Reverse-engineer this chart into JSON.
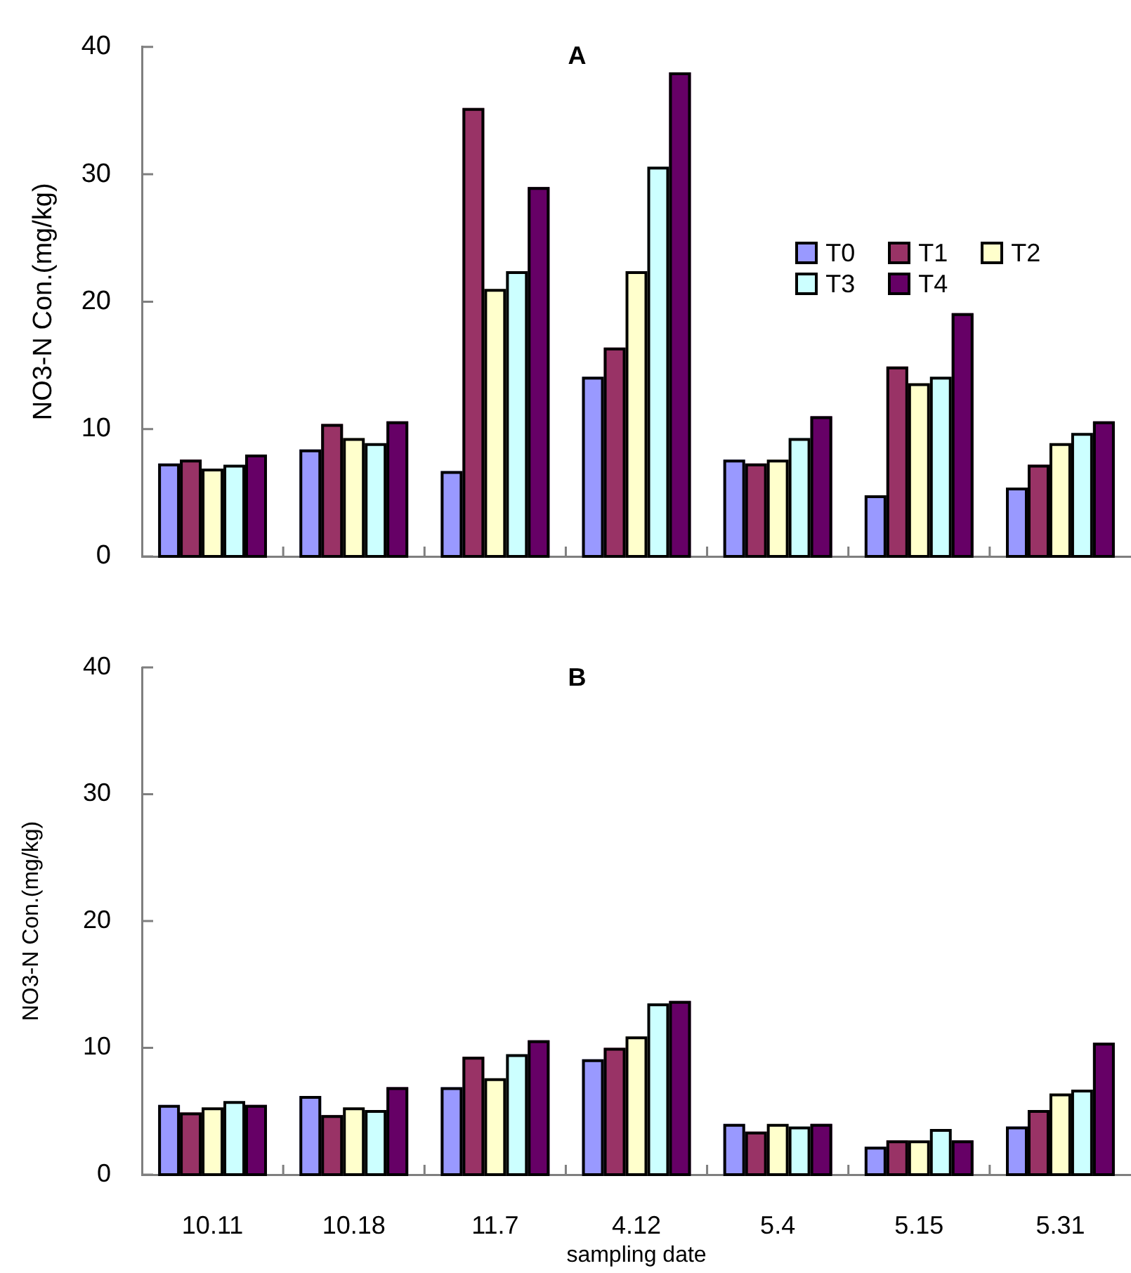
{
  "chart_data": [
    {
      "type": "bar",
      "title": "A",
      "ylabel": "NO3-N Con.(mg/kg)",
      "categories": [
        "10.11",
        "10.18",
        "11.7",
        "4.12",
        "5.4",
        "5.15",
        "5.31"
      ],
      "series": [
        {
          "name": "T0",
          "color": "#9999ff",
          "values": [
            7.3,
            8.4,
            6.7,
            14.1,
            7.6,
            4.8,
            5.4
          ]
        },
        {
          "name": "T1",
          "color": "#993366",
          "values": [
            7.6,
            10.4,
            35.2,
            16.4,
            7.3,
            14.9,
            7.2
          ]
        },
        {
          "name": "T2",
          "color": "#ffffcc",
          "values": [
            6.9,
            9.3,
            21.0,
            22.4,
            7.6,
            13.6,
            8.9
          ]
        },
        {
          "name": "T3",
          "color": "#ccffff",
          "values": [
            7.2,
            8.9,
            22.4,
            30.6,
            9.3,
            14.1,
            9.7
          ]
        },
        {
          "name": "T4",
          "color": "#660066",
          "values": [
            8.0,
            10.6,
            29.0,
            38.0,
            11.0,
            19.1,
            10.6
          ]
        }
      ],
      "ylim": [
        0,
        40
      ],
      "yticks": [
        0,
        10,
        20,
        30,
        40
      ],
      "tick_labels": "y",
      "legend": "right",
      "grid": false
    },
    {
      "type": "bar",
      "title": "B",
      "xlabel": "sampling date",
      "ylabel": "NO3-N Con.(mg/kg)",
      "categories": [
        "10.11",
        "10.18",
        "11.7",
        "4.12",
        "5.4",
        "5.15",
        "5.31"
      ],
      "series": [
        {
          "color": "#9999ff",
          "values": [
            5.5,
            6.2,
            6.9,
            9.1,
            4.0,
            2.2,
            3.8
          ]
        },
        {
          "color": "#993366",
          "values": [
            4.9,
            4.7,
            9.3,
            10.0,
            3.4,
            2.7,
            5.1
          ]
        },
        {
          "color": "#ffffcc",
          "values": [
            5.3,
            5.3,
            7.6,
            10.9,
            4.0,
            2.7,
            6.4
          ]
        },
        {
          "color": "#ccffff",
          "values": [
            5.8,
            5.1,
            9.5,
            13.5,
            3.8,
            3.6,
            6.7
          ]
        },
        {
          "color": "#660066",
          "values": [
            5.5,
            6.9,
            10.6,
            13.7,
            4.0,
            2.7,
            10.4
          ]
        }
      ],
      "ylim": [
        0,
        40
      ],
      "yticks": [
        0,
        10,
        20,
        30,
        40
      ],
      "legend": false,
      "grid": false
    }
  ]
}
